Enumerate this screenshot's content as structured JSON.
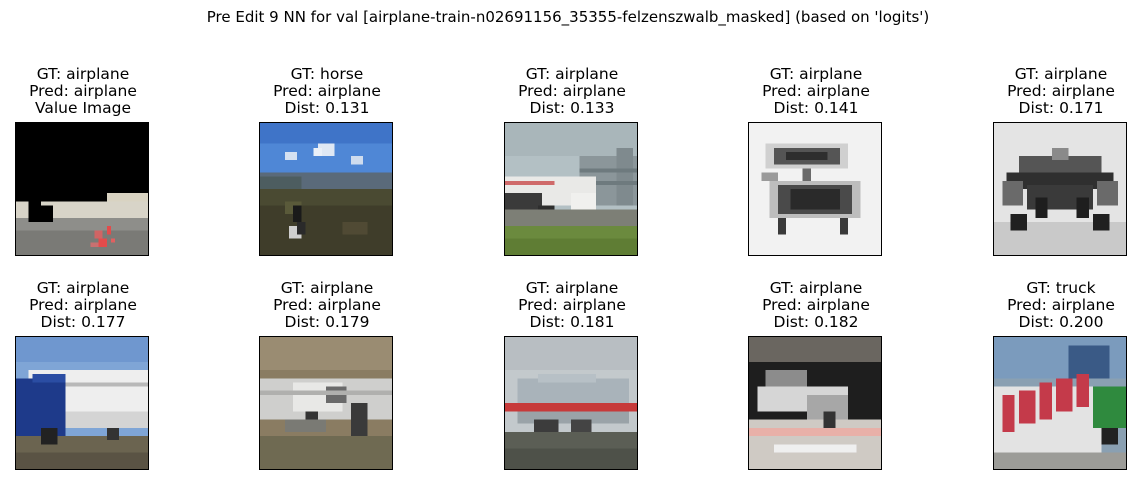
{
  "title": "Pre Edit 9 NN for val [airplane-train-n02691156_35355-felzenszwalb_masked] (based on 'logits')",
  "panels": [
    {
      "gt": "GT: airplane",
      "pred": "Pred: airplane",
      "info": "Value Image",
      "scene": "masked-runway"
    },
    {
      "gt": "GT: horse",
      "pred": "Pred: airplane",
      "info": "Dist: 0.131",
      "scene": "sky-field-rider"
    },
    {
      "gt": "GT: airplane",
      "pred": "Pred: airplane",
      "info": "Dist: 0.133",
      "scene": "airliner-terminal"
    },
    {
      "gt": "GT: airplane",
      "pred": "Pred: airplane",
      "info": "Dist: 0.141",
      "scene": "sketch-aircraft"
    },
    {
      "gt": "GT: airplane",
      "pred": "Pred: airplane",
      "info": "Dist: 0.171",
      "scene": "grayscale-propeller-plane"
    },
    {
      "gt": "GT: airplane",
      "pred": "Pred: airplane",
      "info": "Dist: 0.177",
      "scene": "blue-nose-jet"
    },
    {
      "gt": "GT: airplane",
      "pred": "Pred: airplane",
      "info": "Dist: 0.179",
      "scene": "propeller-plane-grass"
    },
    {
      "gt": "GT: airplane",
      "pred": "Pred: airplane",
      "info": "Dist: 0.181",
      "scene": "red-stripe-airliner"
    },
    {
      "gt": "GT: airplane",
      "pred": "Pred: airplane",
      "info": "Dist: 0.182",
      "scene": "plane-in-hangar"
    },
    {
      "gt": "GT: truck",
      "pred": "Pred: airplane",
      "info": "Dist: 0.200",
      "scene": "red-lettered-truck"
    }
  ]
}
